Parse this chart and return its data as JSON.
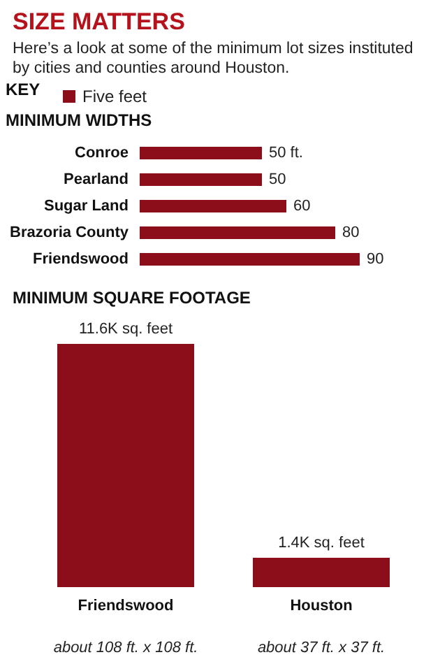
{
  "chart_data": [
    {
      "type": "bar",
      "orientation": "horizontal",
      "title": "SIZE MATTERS",
      "subtitle": "Here’s a look at some of the minimum lot sizes instituted by cities and counties around Houston.",
      "annotations": [
        "MINIMUM WIDTHS"
      ],
      "legend": "top left",
      "legend_title": "KEY",
      "categories": [
        "Conroe",
        "Pearland",
        "Sugar Land",
        "Brazoria County",
        "Friendswood"
      ],
      "series": [
        {
          "name": "Five feet",
          "color": "#8b0e1a",
          "values": [
            50,
            50,
            60,
            80,
            90
          ],
          "value_labels": [
            "50 ft.",
            "50",
            "60",
            "80",
            "90"
          ]
        }
      ]
    },
    {
      "type": "bar",
      "title": "MINIMUM SQUARE FOOTAGE",
      "annotations": [
        "about 108 ft. x 108 ft.",
        "about 37 ft. x 37 ft."
      ],
      "categories": [
        "Friendswood",
        "Houston"
      ],
      "series": [
        {
          "color": "#8b0e1a",
          "values": [
            11.6,
            1.4
          ],
          "value_labels": [
            "11.6K sq. feet",
            "1.4K sq. feet"
          ]
        }
      ]
    }
  ]
}
